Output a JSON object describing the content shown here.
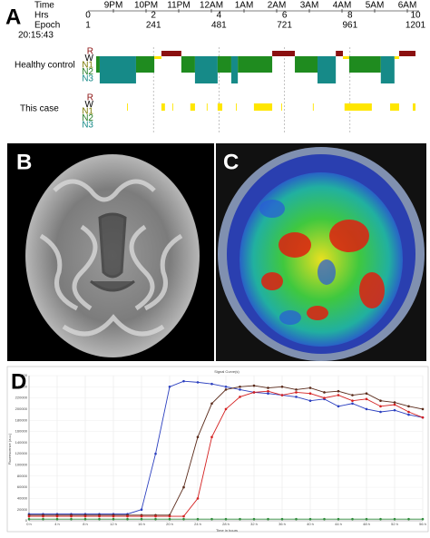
{
  "panel_a": {
    "label": "A",
    "row_labels": [
      "Time",
      "Hrs",
      "Epoch"
    ],
    "times": [
      "9PM",
      "10PM",
      "11PM",
      "12AM",
      "1AM",
      "2AM",
      "3AM",
      "4AM",
      "5AM",
      "6AM"
    ],
    "hrs": [
      "0",
      "2",
      "4",
      "6",
      "8",
      "10"
    ],
    "epochs": [
      1,
      241,
      481,
      721,
      961,
      1201
    ],
    "start_time": "20:15:43",
    "stages": [
      "R",
      "W",
      "N1",
      "N2",
      "N3"
    ],
    "healthy_label": "Healthy control",
    "case_label": "This case",
    "healthy_segments": [
      {
        "stage": "N2",
        "start": 31,
        "end": 44
      },
      {
        "stage": "N3",
        "start": 44,
        "end": 177
      },
      {
        "stage": "N2",
        "start": 177,
        "end": 244
      },
      {
        "stage": "W",
        "start": 244,
        "end": 270
      },
      {
        "stage": "R",
        "start": 270,
        "end": 343
      },
      {
        "stage": "N2",
        "start": 343,
        "end": 393
      },
      {
        "stage": "N3",
        "start": 393,
        "end": 476
      },
      {
        "stage": "N2",
        "start": 476,
        "end": 526
      },
      {
        "stage": "N3",
        "start": 526,
        "end": 550
      },
      {
        "stage": "N2",
        "start": 550,
        "end": 676
      },
      {
        "stage": "R",
        "start": 676,
        "end": 759
      },
      {
        "stage": "N2",
        "start": 759,
        "end": 842
      },
      {
        "stage": "N3",
        "start": 842,
        "end": 909
      },
      {
        "stage": "R",
        "start": 909,
        "end": 935
      },
      {
        "stage": "W",
        "start": 935,
        "end": 958
      },
      {
        "stage": "N2",
        "start": 958,
        "end": 1074
      },
      {
        "stage": "N3",
        "start": 1074,
        "end": 1124
      },
      {
        "stage": "W",
        "start": 1124,
        "end": 1141
      },
      {
        "stage": "R",
        "start": 1141,
        "end": 1201
      }
    ],
    "case_segments": [
      {
        "stage": "W",
        "start": 144,
        "end": 147
      },
      {
        "stage": "W",
        "start": 270,
        "end": 283
      },
      {
        "stage": "W",
        "start": 310,
        "end": 313
      },
      {
        "stage": "W",
        "start": 376,
        "end": 393
      },
      {
        "stage": "W",
        "start": 436,
        "end": 439
      },
      {
        "stage": "W",
        "start": 476,
        "end": 493
      },
      {
        "stage": "W",
        "start": 543,
        "end": 546
      },
      {
        "stage": "W",
        "start": 609,
        "end": 676
      },
      {
        "stage": "W",
        "start": 709,
        "end": 712
      },
      {
        "stage": "W",
        "start": 825,
        "end": 828
      },
      {
        "stage": "W",
        "start": 941,
        "end": 1041
      },
      {
        "stage": "W",
        "start": 1108,
        "end": 1141
      },
      {
        "stage": "W",
        "start": 1191,
        "end": 1201
      }
    ]
  },
  "panel_b": {
    "label": "B"
  },
  "panel_c": {
    "label": "C"
  },
  "panel_d": {
    "label": "D"
  },
  "chart_data": {
    "type": "line",
    "title": "Signal Curve(s)",
    "x_label": "Time in hours",
    "y_label": "Fluorescence (a.u.)",
    "x": [
      0,
      2,
      4,
      6,
      8,
      10,
      12,
      14,
      16,
      18,
      20,
      22,
      24,
      26,
      28,
      30,
      32,
      34,
      36,
      38,
      40,
      42,
      44,
      46,
      48,
      50,
      52,
      54,
      56
    ],
    "xlim": [
      0,
      56
    ],
    "xticks": [
      {
        "value": 0,
        "label": "0 h"
      },
      {
        "value": 4,
        "label": "4 h"
      },
      {
        "value": 8,
        "label": "8 h"
      },
      {
        "value": 12,
        "label": "12 h"
      },
      {
        "value": 16,
        "label": "16 h"
      },
      {
        "value": 20,
        "label": "20 h"
      },
      {
        "value": 24,
        "label": "24 h"
      },
      {
        "value": 28,
        "label": "28 h"
      },
      {
        "value": 32,
        "label": "32 h"
      },
      {
        "value": 36,
        "label": "36 h"
      },
      {
        "value": 40,
        "label": "40 h"
      },
      {
        "value": 44,
        "label": "44 h"
      },
      {
        "value": 48,
        "label": "48 h"
      },
      {
        "value": 52,
        "label": "52 h"
      },
      {
        "value": 56,
        "label": "56 h"
      }
    ],
    "ylim": [
      0,
      260000
    ],
    "yticks": [
      0,
      20000,
      40000,
      60000,
      80000,
      100000,
      120000,
      140000,
      160000,
      180000,
      200000,
      220000,
      240000,
      260000
    ],
    "grid": true,
    "series": [
      {
        "color": "#2b3fbf",
        "values": [
          12000,
          12000,
          12000,
          12000,
          12000,
          12000,
          12000,
          12000,
          20000,
          120000,
          240000,
          250000,
          248000,
          245000,
          240000,
          235000,
          230000,
          228000,
          225000,
          222000,
          215000,
          218000,
          205000,
          210000,
          200000,
          195000,
          198000,
          190000,
          185000
        ]
      },
      {
        "color": "#5a2a1a",
        "values": [
          10000,
          10000,
          10000,
          10000,
          10000,
          10000,
          10000,
          10000,
          10000,
          10000,
          10000,
          60000,
          150000,
          210000,
          235000,
          240000,
          242000,
          238000,
          240000,
          235000,
          238000,
          230000,
          232000,
          225000,
          228000,
          215000,
          212000,
          205000,
          200000
        ]
      },
      {
        "color": "#d42020",
        "values": [
          8000,
          8000,
          8000,
          8000,
          8000,
          8000,
          8000,
          8000,
          8000,
          8000,
          8000,
          8000,
          40000,
          150000,
          200000,
          222000,
          230000,
          232000,
          225000,
          230000,
          228000,
          220000,
          225000,
          215000,
          218000,
          205000,
          208000,
          195000,
          185000
        ]
      },
      {
        "color": "#2e8b3a",
        "values": [
          3000,
          3000,
          3000,
          3000,
          3000,
          3000,
          3000,
          3000,
          3000,
          3000,
          3000,
          3000,
          3000,
          3000,
          3000,
          3000,
          3000,
          3000,
          3000,
          3000,
          3000,
          3000,
          3000,
          3000,
          3000,
          3000,
          3000,
          3000,
          3000
        ]
      }
    ]
  }
}
